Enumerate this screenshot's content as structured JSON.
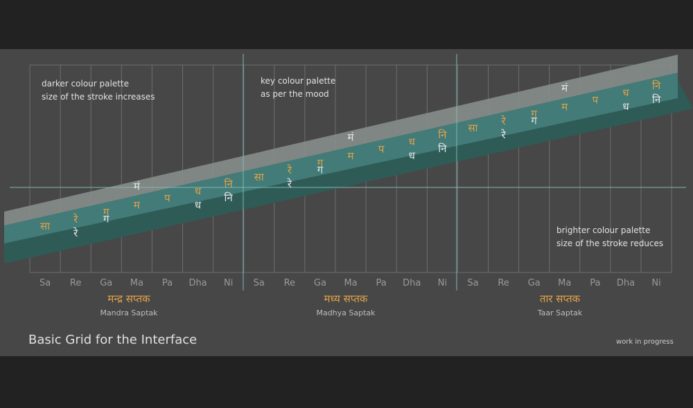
{
  "title": "Basic Grid for the Interface",
  "status_note": "work in progress",
  "annotations": {
    "darker": [
      "darker colour palette",
      "size of the stroke increases"
    ],
    "key": [
      "key colour palette",
      "as per the mood"
    ],
    "brighter": [
      "brighter colour palette",
      "size of the stroke reduces"
    ]
  },
  "note_names": [
    "Sa",
    "Re",
    "Ga",
    "Ma",
    "Pa",
    "Dha",
    "Ni"
  ],
  "saptaks": [
    {
      "hindi": "मन्द्र सप्तक",
      "english": "Mandra Saptak"
    },
    {
      "hindi": "मध्य सप्तक",
      "english": "Madhya Saptak"
    },
    {
      "hindi": "तार सप्तक",
      "english": "Taar Saptak"
    }
  ],
  "swaras": {
    "shuddha": [
      "सा",
      "रे",
      "ग",
      "म",
      "प",
      "ध",
      "नि"
    ],
    "tivra_ma": "मं",
    "komal": {
      "re": "रे",
      "ga": "ग",
      "dha": "ध",
      "ni": "नि"
    }
  },
  "colors": {
    "stage": "#474747",
    "grid": "#6e6e6e",
    "axis": "#7fbab3",
    "band_dark": "#2f5b57",
    "band_key": "#427b77",
    "band_light": "#868d89",
    "shuddha_text": "#e3a24a",
    "komal_text": "#e6e6e6",
    "note_axis_text": "#9a9a9a"
  }
}
